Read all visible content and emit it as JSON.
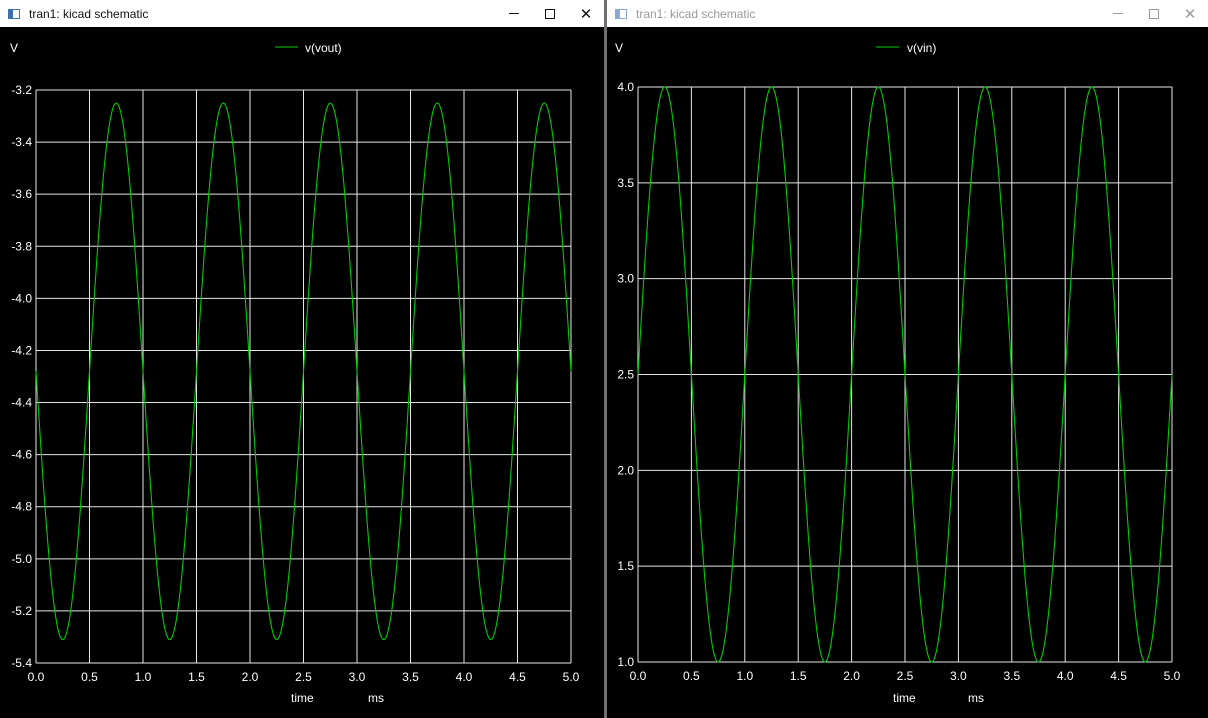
{
  "windows": [
    {
      "id": "left",
      "title": "tran1: kicad schematic",
      "active": true,
      "unit_label": "V",
      "time_label": "time",
      "time_unit": "ms",
      "legend": "v(vout)"
    },
    {
      "id": "right",
      "title": "tran1: kicad schematic",
      "active": false,
      "unit_label": "V",
      "time_label": "time",
      "time_unit": "ms",
      "legend": "v(vin)"
    }
  ],
  "controls": {
    "minimize": "—",
    "close": "✕"
  },
  "colors": {
    "trace": "#00cc00",
    "grid": "#e6e6e6",
    "background": "#000000",
    "text": "#ffffff"
  },
  "chart_data": [
    {
      "type": "line",
      "title": "",
      "xlabel": "time",
      "xunit": "ms",
      "ylabel": "V",
      "xlim": [
        0,
        5
      ],
      "ylim": [
        -5.4,
        -3.2
      ],
      "xticks": [
        "0.0",
        "0.5",
        "1.0",
        "1.5",
        "2.0",
        "2.5",
        "3.0",
        "3.5",
        "4.0",
        "4.5",
        "5.0"
      ],
      "yticks": [
        "-3.2",
        "-3.4",
        "-3.6",
        "-3.8",
        "-4.0",
        "-4.2",
        "-4.4",
        "-4.6",
        "-4.8",
        "-5.0",
        "-5.2",
        "-5.4"
      ],
      "grid": true,
      "legend_position": "top-center",
      "series": [
        {
          "name": "v(vout)",
          "waveform": "sine",
          "offset": -4.28,
          "amplitude": 1.03,
          "frequency_khz": 1,
          "phase": "inverted",
          "x": [
            0,
            0.25,
            0.5,
            0.75,
            1.0,
            1.25,
            1.5,
            1.75,
            2.0,
            2.25,
            2.5,
            2.75,
            3.0,
            3.25,
            3.5,
            3.75,
            4.0,
            4.25,
            4.5,
            4.75,
            5.0
          ],
          "y": [
            -4.28,
            -5.31,
            -4.28,
            -3.25,
            -4.28,
            -5.31,
            -4.28,
            -3.25,
            -4.28,
            -5.31,
            -4.28,
            -3.25,
            -4.28,
            -5.31,
            -4.28,
            -3.25,
            -4.28,
            -5.31,
            -4.28,
            -3.25,
            -4.28
          ]
        }
      ]
    },
    {
      "type": "line",
      "title": "",
      "xlabel": "time",
      "xunit": "ms",
      "ylabel": "V",
      "xlim": [
        0,
        5
      ],
      "ylim": [
        1.0,
        4.0
      ],
      "xticks": [
        "0.0",
        "0.5",
        "1.0",
        "1.5",
        "2.0",
        "2.5",
        "3.0",
        "3.5",
        "4.0",
        "4.5",
        "5.0"
      ],
      "yticks": [
        "4.0",
        "3.5",
        "3.0",
        "2.5",
        "2.0",
        "1.5",
        "1.0"
      ],
      "grid": true,
      "legend_position": "top-center",
      "series": [
        {
          "name": "v(vin)",
          "waveform": "sine",
          "offset": 2.5,
          "amplitude": 1.5,
          "frequency_khz": 1,
          "phase": "normal",
          "x": [
            0,
            0.25,
            0.5,
            0.75,
            1.0,
            1.25,
            1.5,
            1.75,
            2.0,
            2.25,
            2.5,
            2.75,
            3.0,
            3.25,
            3.5,
            3.75,
            4.0,
            4.25,
            4.5,
            4.75,
            5.0
          ],
          "y": [
            2.5,
            4.0,
            2.5,
            1.0,
            2.5,
            4.0,
            2.5,
            1.0,
            2.5,
            4.0,
            2.5,
            1.0,
            2.5,
            4.0,
            2.5,
            1.0,
            2.5,
            4.0,
            2.5,
            1.0,
            2.5
          ]
        }
      ]
    }
  ]
}
